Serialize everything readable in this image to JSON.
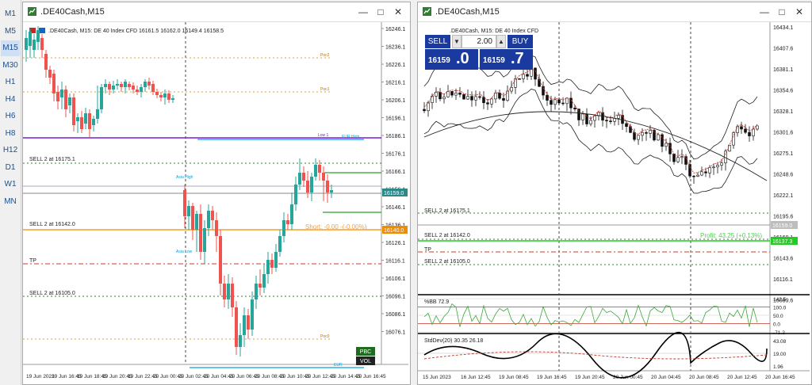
{
  "timeframes": [
    "M1",
    "M5",
    "M15",
    "M30",
    "H1",
    "H4",
    "H6",
    "H8",
    "H12",
    "D1",
    "W1",
    "MN"
  ],
  "active_timeframe": "M15",
  "left": {
    "title": ".DE40Cash,M15",
    "info": ".DE40Cash, M15:  DE 40 Index CFD   16161.5 16162.0 16149.4 16158.5",
    "price_labels": [
      "16246.1",
      "16236.1",
      "16226.1",
      "16216.1",
      "16206.1",
      "16196.1",
      "16186.1",
      "16176.1",
      "16166.1",
      "16156.1",
      "16146.1",
      "16136.1",
      "16126.1",
      "16116.1",
      "16106.1",
      "16096.1",
      "16086.1",
      "16076.1"
    ],
    "bid_tag": "16159.0",
    "short_tag": "16140.0",
    "short_text": "Short: -0.00 -(-0.00%)",
    "lines": {
      "sell1": "SELL 2 at 16175.1",
      "sell2": "SELL 2 at 16142.0",
      "tp": "TP",
      "sell3": "SELL 2 at 16105.0"
    },
    "small_labels": {
      "poc2": "Poc2",
      "poc1": "Poc1",
      "low1": "Low 1",
      "eur_high": "EUR High",
      "asia_high": "Asia High",
      "asia_low": "Asia Low",
      "poc0": "Poc0",
      "eur": "EUR"
    },
    "pbc": "PBC",
    "vol": "VOL",
    "time_labels": [
      "19 Jun 2023",
      "19 Jun 16:45",
      "19 Jun 18:45",
      "19 Jun 20:45",
      "19 Jun 22:45",
      "20 Jun 00:45",
      "20 Jun 02:45",
      "20 Jun 04:45",
      "20 Jun 06:45",
      "20 Jun 08:45",
      "20 Jun 10:45",
      "20 Jun 12:45",
      "20 Jun 14:45",
      "20 Jun 16:45"
    ]
  },
  "right": {
    "title": ".DE40Cash,M15",
    "info": ".DE40Cash, M15:  DE 40 Index CFD",
    "trade": {
      "sell": "SELL",
      "buy": "BUY",
      "volume": "2.00",
      "sell_small": "16159",
      "sell_big": ".0",
      "buy_small": "16159",
      "buy_big": ".7"
    },
    "price_labels": [
      "16434.1",
      "16407.6",
      "16381.1",
      "16354.6",
      "16328.1",
      "16301.6",
      "16275.1",
      "16248.6",
      "16222.1",
      "16195.6",
      "16169.1",
      "16143.6",
      "16116.1",
      "16089.6"
    ],
    "bid_tag": "16159.0",
    "green_tag": "16137.3",
    "pnl_text": "Profit: 43.25 (+0.13%)",
    "lines": {
      "sell1": "SELL 2 at 16175.1",
      "sell2": "SELL 2 at 16142.0",
      "tp": "TP",
      "sell3": "SELL 2 at 16105.0"
    },
    "bb_label": "%BB 72.9",
    "bb_levels": [
      "142.5",
      "100.0",
      "50.0",
      "0.0",
      "-71.2"
    ],
    "std_label": "StdDev(20) 30.35 26.18",
    "std_levels": [
      "43.08",
      "19.00",
      "1.96"
    ],
    "time_labels": [
      "15 Jun 2023",
      "16 Jun 12:45",
      "19 Jun 08:45",
      "19 Jun 16:45",
      "19 Jun 20:45",
      "20 Jun 00:45",
      "20 Jun 04:45",
      "20 Jun 08:45",
      "20 Jun 12:45",
      "20 Jun 16:45"
    ]
  },
  "colors": {
    "bull": "#26a69a",
    "bear": "#ef5350",
    "grid": "#c8c8c8",
    "sell": "#2a8a2a",
    "tp": "#d03a2a",
    "purple": "#7a1fd0",
    "cyan": "#00a0e0",
    "bid": "#2a8a8a",
    "orange": "#f08c00",
    "accent": "#1a3aa0"
  }
}
